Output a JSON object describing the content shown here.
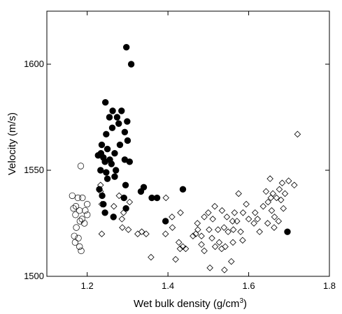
{
  "chart_data": {
    "type": "scatter",
    "title": "",
    "xlabel": "Wet bulk density (g/cm",
    "xlabel_sup": "3",
    "xlabel_end": ")",
    "ylabel": "Velocity (m/s)",
    "xlim": [
      1.1,
      1.8
    ],
    "ylim": [
      1500,
      1625
    ],
    "x_ticks": [
      1.2,
      1.4,
      1.6,
      1.8
    ],
    "x_tick_labels": [
      "1.2",
      "1.4",
      "1.6",
      "1.8"
    ],
    "y_ticks": [
      1500,
      1550,
      1600
    ],
    "y_tick_labels": [
      "1500",
      "1550",
      "1600"
    ],
    "grid": false,
    "legend": "none",
    "series": [
      {
        "marker": "filled-circle",
        "color": "#000000",
        "points": [
          [
            1.297,
            1608
          ],
          [
            1.309,
            1600
          ],
          [
            1.245,
            1582
          ],
          [
            1.263,
            1578
          ],
          [
            1.285,
            1578
          ],
          [
            1.255,
            1575
          ],
          [
            1.274,
            1575
          ],
          [
            1.278,
            1572
          ],
          [
            1.262,
            1570
          ],
          [
            1.299,
            1573
          ],
          [
            1.247,
            1567
          ],
          [
            1.293,
            1568
          ],
          [
            1.3,
            1564
          ],
          [
            1.281,
            1562
          ],
          [
            1.236,
            1562
          ],
          [
            1.25,
            1560
          ],
          [
            1.268,
            1558
          ],
          [
            1.234,
            1558
          ],
          [
            1.24,
            1556
          ],
          [
            1.227,
            1557
          ],
          [
            1.256,
            1555
          ],
          [
            1.244,
            1554
          ],
          [
            1.26,
            1553
          ],
          [
            1.293,
            1555
          ],
          [
            1.305,
            1554
          ],
          [
            1.233,
            1550
          ],
          [
            1.247,
            1549
          ],
          [
            1.271,
            1550
          ],
          [
            1.268,
            1547
          ],
          [
            1.25,
            1546
          ],
          [
            1.23,
            1541
          ],
          [
            1.237,
            1538
          ],
          [
            1.295,
            1543
          ],
          [
            1.34,
            1542
          ],
          [
            1.333,
            1540
          ],
          [
            1.291,
            1537
          ],
          [
            1.36,
            1537
          ],
          [
            1.373,
            1537
          ],
          [
            1.437,
            1541
          ],
          [
            1.244,
            1530
          ],
          [
            1.265,
            1528
          ],
          [
            1.394,
            1526
          ],
          [
            1.696,
            1521
          ],
          [
            1.296,
            1532
          ],
          [
            1.24,
            1534
          ]
        ]
      },
      {
        "marker": "open-circle",
        "color": "#000000",
        "points": [
          [
            1.184,
            1552
          ],
          [
            1.163,
            1538
          ],
          [
            1.177,
            1537
          ],
          [
            1.188,
            1537
          ],
          [
            1.2,
            1534
          ],
          [
            1.172,
            1533
          ],
          [
            1.166,
            1532
          ],
          [
            1.181,
            1531
          ],
          [
            1.195,
            1531
          ],
          [
            1.171,
            1529
          ],
          [
            1.2,
            1529
          ],
          [
            1.187,
            1527
          ],
          [
            1.182,
            1526
          ],
          [
            1.193,
            1525
          ],
          [
            1.173,
            1523
          ],
          [
            1.168,
            1519
          ],
          [
            1.178,
            1518
          ],
          [
            1.17,
            1516
          ],
          [
            1.181,
            1514
          ],
          [
            1.185,
            1512
          ]
        ]
      },
      {
        "marker": "open-diamond",
        "color": "#000000",
        "points": [
          [
            1.721,
            1567
          ],
          [
            1.233,
            1543
          ],
          [
            1.233,
            1540
          ],
          [
            1.279,
            1538
          ],
          [
            1.305,
            1535
          ],
          [
            1.236,
            1534
          ],
          [
            1.266,
            1533
          ],
          [
            1.29,
            1530
          ],
          [
            1.395,
            1537
          ],
          [
            1.41,
            1528
          ],
          [
            1.431,
            1530
          ],
          [
            1.286,
            1527
          ],
          [
            1.287,
            1523
          ],
          [
            1.302,
            1522
          ],
          [
            1.335,
            1521
          ],
          [
            1.325,
            1520
          ],
          [
            1.346,
            1520
          ],
          [
            1.236,
            1520
          ],
          [
            1.394,
            1520
          ],
          [
            1.411,
            1523
          ],
          [
            1.427,
            1516
          ],
          [
            1.437,
            1514
          ],
          [
            1.43,
            1513
          ],
          [
            1.444,
            1513
          ],
          [
            1.358,
            1509
          ],
          [
            1.419,
            1508
          ],
          [
            1.462,
            1519
          ],
          [
            1.483,
            1519
          ],
          [
            1.474,
            1522
          ],
          [
            1.469,
            1520
          ],
          [
            1.473,
            1525
          ],
          [
            1.49,
            1528
          ],
          [
            1.511,
            1527
          ],
          [
            1.5,
            1530
          ],
          [
            1.516,
            1533
          ],
          [
            1.534,
            1531
          ],
          [
            1.524,
            1522
          ],
          [
            1.539,
            1523
          ],
          [
            1.502,
            1522
          ],
          [
            1.509,
            1518
          ],
          [
            1.527,
            1516
          ],
          [
            1.533,
            1513
          ],
          [
            1.483,
            1515
          ],
          [
            1.49,
            1512
          ],
          [
            1.517,
            1514
          ],
          [
            1.542,
            1514
          ],
          [
            1.504,
            1504
          ],
          [
            1.54,
            1503
          ],
          [
            1.557,
            1507
          ],
          [
            1.549,
            1521
          ],
          [
            1.56,
            1526
          ],
          [
            1.565,
            1530
          ],
          [
            1.562,
            1522
          ],
          [
            1.571,
            1526
          ],
          [
            1.58,
            1521
          ],
          [
            1.585,
            1517
          ],
          [
            1.561,
            1516
          ],
          [
            1.575,
            1539
          ],
          [
            1.586,
            1530
          ],
          [
            1.594,
            1534
          ],
          [
            1.616,
            1530
          ],
          [
            1.613,
            1525
          ],
          [
            1.622,
            1527
          ],
          [
            1.627,
            1521
          ],
          [
            1.636,
            1533
          ],
          [
            1.643,
            1540
          ],
          [
            1.653,
            1546
          ],
          [
            1.66,
            1539
          ],
          [
            1.655,
            1537
          ],
          [
            1.648,
            1535
          ],
          [
            1.657,
            1531
          ],
          [
            1.664,
            1528
          ],
          [
            1.647,
            1525
          ],
          [
            1.683,
            1544
          ],
          [
            1.69,
            1539
          ],
          [
            1.68,
            1536
          ],
          [
            1.686,
            1532
          ],
          [
            1.676,
            1541
          ],
          [
            1.669,
            1537
          ],
          [
            1.699,
            1545
          ],
          [
            1.663,
            1523
          ],
          [
            1.674,
            1526
          ],
          [
            1.713,
            1543
          ],
          [
            1.6,
            1527
          ],
          [
            1.546,
            1528
          ]
        ]
      }
    ]
  }
}
